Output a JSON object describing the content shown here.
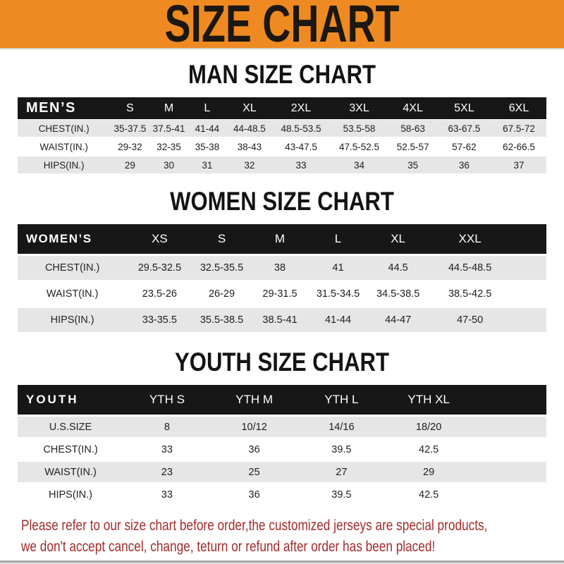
{
  "banner": {
    "title": "SIZE CHART"
  },
  "colors": {
    "banner_bg": "#ee8a21",
    "header_bar": "#171717",
    "row_gray": "#e6e6e6",
    "footer_red": "#a32b2b"
  },
  "sections": [
    {
      "heading": "MAN SIZE CHART",
      "table": {
        "label": "MEN’S",
        "columns": [
          "S",
          "M",
          "L",
          "XL",
          "2XL",
          "3XL",
          "4XL",
          "5XL",
          "6XL"
        ],
        "rows": [
          {
            "label": "CHEST(IN.)",
            "values": [
              "35-37.5",
              "37.5-41",
              "41-44",
              "44-48.5",
              "48.5-53.5",
              "53.5-58",
              "58-63",
              "63-67.5",
              "67.5-72"
            ]
          },
          {
            "label": "WAIST(IN.)",
            "values": [
              "29-32",
              "32-35",
              "35-38",
              "38-43",
              "43-47.5",
              "47.5-52.5",
              "52.5-57",
              "57-62",
              "62-66.5"
            ]
          },
          {
            "label": "HIPS(IN.)",
            "values": [
              "29",
              "30",
              "31",
              "32",
              "33",
              "34",
              "35",
              "36",
              "37"
            ]
          }
        ]
      }
    },
    {
      "heading": "WOMEN SIZE CHART",
      "table": {
        "label": "WOMEN’S",
        "columns": [
          "XS",
          "S",
          "M",
          "L",
          "XL",
          "XXL"
        ],
        "rows": [
          {
            "label": "CHEST(IN.)",
            "values": [
              "29.5-32.5",
              "32.5-35.5",
              "38",
              "41",
              "44.5",
              "44.5-48.5"
            ]
          },
          {
            "label": "WAIST(IN.)",
            "values": [
              "23.5-26",
              "26-29",
              "29-31.5",
              "31.5-34.5",
              "34.5-38.5",
              "38.5-42.5"
            ]
          },
          {
            "label": "HIPS(IN.)",
            "values": [
              "33-35.5",
              "35.5-38.5",
              "38.5-41",
              "41-44",
              "44-47",
              "47-50"
            ]
          }
        ]
      }
    },
    {
      "heading": "YOUTH SIZE CHART",
      "table": {
        "label": "YOUTH",
        "columns": [
          "YTH S",
          "YTH M",
          "YTH L",
          "YTH XL"
        ],
        "rows": [
          {
            "label": "U.S.SIZE",
            "values": [
              "8",
              "10/12",
              "14/16",
              "18/20"
            ]
          },
          {
            "label": "CHEST(IN.)",
            "values": [
              "33",
              "36",
              "39.5",
              "42.5"
            ]
          },
          {
            "label": "WAIST(IN.)",
            "values": [
              "23",
              "25",
              "27",
              "29"
            ]
          },
          {
            "label": "HIPS(IN.)",
            "values": [
              "33",
              "36",
              "39.5",
              "42.5"
            ]
          }
        ]
      }
    }
  ],
  "footer": {
    "lines": [
      "Please refer to our size chart before order,the customized jerseys are special products,",
      "we don't accept cancel, change, teturn or refund after order has been placed!"
    ]
  }
}
